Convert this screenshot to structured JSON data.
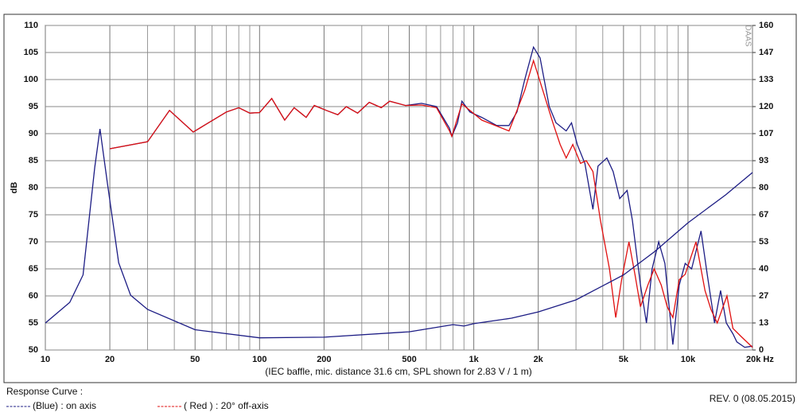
{
  "chart_data": {
    "type": "line",
    "xscale": "log",
    "ylabel": "dB",
    "xlabel": "(IEC baffle, mic. distance 31.6 cm, SPL shown for 2.83 V / 1 m)",
    "legend_title": "Response Curve :",
    "revision": "REV. 0 (08.05.2015)",
    "watermark": "DAAS",
    "grid": true,
    "xlim": [
      10,
      20000
    ],
    "ylim": [
      50,
      110
    ],
    "y2lim": [
      0,
      160
    ],
    "xticks": [
      10,
      20,
      50,
      100,
      200,
      500,
      {
        "value": 1000,
        "label": "1k"
      },
      {
        "value": 2000,
        "label": "2k"
      },
      {
        "value": 5000,
        "label": "5k"
      },
      {
        "value": 10000,
        "label": "10k"
      },
      {
        "value": 20000,
        "label": "20k Hz"
      }
    ],
    "xgrid": [
      30,
      40,
      60,
      70,
      80,
      90,
      300,
      400,
      600,
      700,
      800,
      900,
      3000,
      4000,
      6000,
      7000,
      8000,
      9000
    ],
    "yticks": [
      50,
      55,
      60,
      65,
      70,
      75,
      80,
      85,
      90,
      95,
      100,
      105,
      110
    ],
    "y2ticks": [
      0,
      {
        "value": 13.33,
        "label": "13"
      },
      {
        "value": 26.67,
        "label": "27"
      },
      40,
      {
        "value": 53.33,
        "label": "53"
      },
      {
        "value": 66.67,
        "label": "67"
      },
      80,
      {
        "value": 93.33,
        "label": "93"
      },
      {
        "value": 106.67,
        "label": "107"
      },
      120,
      {
        "value": 133.33,
        "label": "133"
      },
      {
        "value": 146.67,
        "label": "147"
      },
      160
    ],
    "series": [
      {
        "name": "(Blue) : on axis",
        "color": "#1c1c84",
        "x": [
          20,
          30,
          38,
          49,
          70,
          80,
          90,
          100,
          114,
          131,
          145,
          165,
          180,
          205,
          232,
          254,
          287,
          325,
          370,
          405,
          480,
          570,
          670,
          770,
          790,
          840,
          880,
          960,
          1090,
          1280,
          1460,
          1590,
          1730,
          1900,
          2040,
          2250,
          2420,
          2700,
          2860,
          3040,
          3300,
          3600,
          3800,
          4180,
          4470,
          4800,
          5200,
          5500,
          6000,
          6400,
          6800,
          7300,
          7800,
          8500,
          9100,
          9700,
          10400,
          11500,
          12300,
          13300,
          14200,
          15100,
          16200,
          16900,
          18400,
          20000
        ],
        "values": [
          87.2,
          88.5,
          94.3,
          90.3,
          94,
          94.8,
          93.8,
          93.9,
          96.5,
          92.5,
          94.8,
          93,
          95.2,
          94.3,
          93.5,
          95,
          93.8,
          95.8,
          94.8,
          96,
          95.2,
          95.6,
          95,
          91,
          89.5,
          92,
          96,
          94,
          93,
          91.5,
          91.5,
          94,
          100,
          106,
          104,
          95,
          92,
          90.5,
          92,
          88,
          84.5,
          76,
          84,
          85.5,
          83,
          78,
          79.5,
          74,
          62,
          55,
          65,
          70,
          66,
          51,
          62,
          66,
          65,
          72,
          64,
          55,
          61,
          55,
          53,
          51.5,
          50.5,
          50.7
        ]
      },
      {
        "name": "( Red ) : 20° off-axis",
        "color": "#e01010",
        "x": [
          20,
          30,
          38,
          49,
          70,
          80,
          90,
          100,
          114,
          131,
          145,
          165,
          180,
          205,
          232,
          254,
          287,
          325,
          370,
          405,
          480,
          570,
          670,
          770,
          790,
          880,
          1090,
          1460,
          1730,
          1900,
          2100,
          2340,
          2530,
          2700,
          2900,
          3150,
          3350,
          3600,
          3900,
          4300,
          4600,
          4900,
          5300,
          5650,
          6000,
          6500,
          6950,
          7500,
          8000,
          8500,
          9100,
          9700,
          10900,
          12000,
          12800,
          13700,
          15200,
          16200,
          17700,
          20000
        ],
        "values": [
          87.2,
          88.5,
          94.3,
          90.3,
          94,
          94.8,
          93.8,
          93.9,
          96.5,
          92.5,
          94.8,
          93,
          95.2,
          94.3,
          93.5,
          95,
          93.8,
          95.8,
          94.8,
          96,
          95.2,
          95.3,
          94.8,
          90.5,
          89.5,
          95.5,
          92.5,
          90.5,
          98,
          103.5,
          98,
          92,
          88,
          85.5,
          88,
          84.5,
          85,
          83,
          74,
          65,
          56,
          63,
          70,
          64,
          58,
          62,
          65,
          62,
          58,
          56,
          63,
          64,
          70,
          61,
          57.5,
          55,
          60,
          54,
          52.5,
          50.5
        ]
      },
      {
        "color": "#1c1c84",
        "axis": "y2",
        "x": [
          10,
          13,
          15,
          17,
          18,
          19.5,
          22,
          25,
          30,
          50,
          100,
          200,
          500,
          800,
          900,
          1000,
          1500,
          2000,
          3000,
          5000,
          7000,
          10000,
          15000,
          20000
        ],
        "values": [
          13.3,
          23.5,
          37,
          90,
          109,
          82,
          43,
          27,
          20,
          10,
          6,
          6.3,
          9,
          12.5,
          11.8,
          13,
          15.7,
          18.8,
          24.7,
          37,
          48.6,
          62.7,
          76.5,
          87.5
        ]
      }
    ]
  }
}
